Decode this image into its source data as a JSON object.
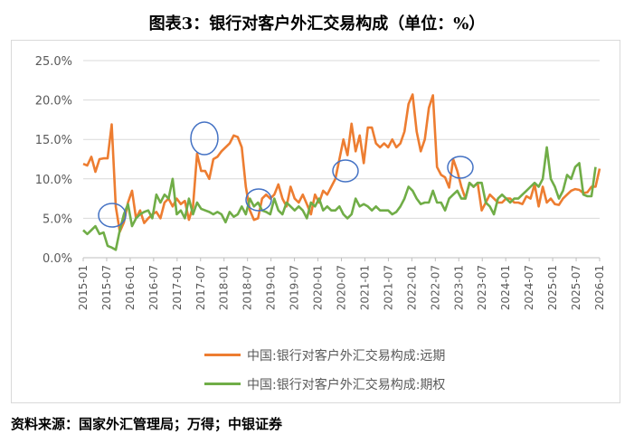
{
  "title": "图表3：银行对客户外汇交易构成（单位：%）",
  "source": "资料来源：国家外汇管理局；万得；中银证券",
  "chart_data": {
    "type": "line",
    "ylim": [
      0,
      25
    ],
    "y_ticks": [
      "0.0%",
      "5.0%",
      "10.0%",
      "15.0%",
      "20.0%",
      "25.0%"
    ],
    "x_tick_labels": [
      "2015-01",
      "2015-07",
      "2016-01",
      "2016-07",
      "2017-01",
      "2017-07",
      "2018-01",
      "2018-07",
      "2019-01",
      "2019-07",
      "2020-01",
      "2020-07",
      "2021-01",
      "2021-07",
      "2022-01",
      "2022-07",
      "2023-01",
      "2023-07",
      "2024-01",
      "2024-07",
      "2025-01",
      "2025-07",
      "2026-01"
    ],
    "grid": true,
    "legend_position": "bottom",
    "series": [
      {
        "name": "中国:银行对客户外汇交易构成:远期",
        "color": "#ED7D31",
        "values": [
          11.9,
          11.7,
          12.8,
          10.9,
          12.5,
          12.6,
          12.6,
          16.9,
          6.5,
          3.3,
          4.5,
          7.0,
          8.5,
          5.0,
          6.0,
          4.4,
          5.0,
          5.5,
          5.8,
          5.0,
          7.0,
          7.5,
          6.5,
          7.5,
          6.8,
          7.2,
          4.8,
          6.5,
          13.2,
          11.0,
          11.0,
          10.0,
          12.5,
          12.8,
          13.5,
          14.0,
          14.5,
          15.5,
          15.3,
          14.0,
          9.0,
          6.0,
          4.8,
          5.0,
          7.5,
          8.0,
          7.5,
          8.0,
          9.3,
          7.5,
          6.5,
          9.0,
          7.5,
          7.0,
          8.0,
          6.8,
          5.5,
          8.0,
          7.0,
          8.5,
          8.0,
          9.0,
          10.0,
          12.5,
          15.0,
          13.0,
          17.0,
          13.5,
          15.5,
          12.0,
          16.5,
          16.5,
          14.5,
          14.0,
          14.5,
          14.0,
          15.0,
          14.0,
          14.5,
          16.0,
          19.5,
          20.7,
          16.0,
          13.5,
          15.0,
          19.0,
          20.6,
          11.5,
          10.5,
          10.2,
          8.9,
          12.5,
          11.0,
          9.0,
          7.5,
          9.5,
          9.0,
          9.5,
          6.0,
          7.0,
          8.0,
          7.5,
          7.0,
          7.0,
          7.5,
          7.5,
          7.0,
          7.0,
          6.8,
          7.8,
          7.5,
          9.3,
          6.5,
          9.0,
          7.0,
          7.5,
          6.8,
          6.7,
          7.5,
          8.0,
          8.5,
          8.7,
          8.6,
          8.2,
          8.3,
          9.0,
          9.0,
          11.3
        ]
      },
      {
        "name": "中国:银行对客户外汇交易构成:期权",
        "color": "#70AD47",
        "values": [
          3.5,
          3.0,
          3.5,
          4.0,
          3.0,
          3.2,
          1.5,
          1.3,
          1.0,
          3.5,
          5.5,
          6.8,
          4.0,
          5.0,
          5.5,
          5.8,
          6.0,
          5.0,
          8.0,
          7.0,
          8.0,
          7.5,
          10.0,
          5.5,
          6.0,
          5.0,
          7.5,
          5.5,
          7.0,
          6.2,
          6.0,
          5.8,
          5.5,
          5.8,
          5.5,
          4.5,
          5.8,
          5.2,
          5.5,
          6.5,
          5.5,
          7.5,
          6.5,
          7.0,
          6.0,
          5.8,
          5.5,
          7.5,
          6.0,
          5.5,
          7.0,
          6.5,
          6.0,
          6.5,
          6.0,
          5.0,
          7.0,
          6.5,
          7.5,
          6.0,
          6.5,
          6.0,
          6.0,
          6.5,
          5.5,
          5.0,
          5.5,
          7.5,
          6.5,
          6.8,
          6.5,
          6.0,
          6.5,
          6.0,
          6.0,
          6.0,
          5.5,
          5.8,
          6.5,
          7.5,
          9.0,
          8.5,
          7.5,
          6.8,
          7.0,
          7.0,
          8.5,
          7.0,
          7.0,
          6.0,
          7.5,
          8.0,
          8.5,
          7.5,
          7.5,
          9.5,
          9.0,
          9.5,
          9.5,
          7.0,
          6.5,
          5.5,
          7.5,
          8.0,
          7.5,
          7.0,
          7.5,
          7.5,
          8.0,
          8.5,
          9.0,
          9.5,
          9.0,
          10.0,
          14.0,
          10.0,
          9.0,
          7.5,
          8.5,
          10.5,
          10.0,
          11.5,
          12.0,
          8.0,
          7.8,
          7.8,
          11.5
        ]
      }
    ]
  }
}
